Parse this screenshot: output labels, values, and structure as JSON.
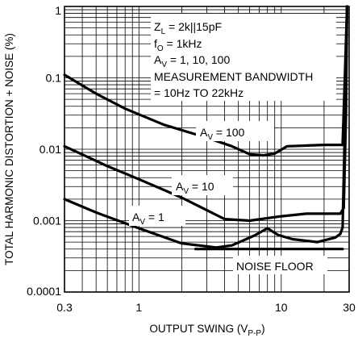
{
  "chart_data": {
    "type": "line",
    "xscale": "log",
    "yscale": "log",
    "xlim": [
      0.3,
      30
    ],
    "ylim": [
      0.0001,
      1
    ],
    "grid": true,
    "xlabel": "OUTPUT SWING (V",
    "xlabel_sub": "P-P",
    "xlabel_close": ")",
    "ylabel": "TOTAL HARMONIC DISTORTION + NOISE (%)",
    "x_ticks": [
      {
        "value": 0.3,
        "label": "0.3"
      },
      {
        "value": 1,
        "label": "1"
      },
      {
        "value": 10,
        "label": "10"
      },
      {
        "value": 30,
        "label": "30"
      }
    ],
    "y_ticks": [
      {
        "value": 1,
        "label": "1"
      },
      {
        "value": 0.1,
        "label": "0.1"
      },
      {
        "value": 0.01,
        "label": "0.01"
      },
      {
        "value": 0.001,
        "label": "0.001"
      },
      {
        "value": 0.0001,
        "label": "0.0001"
      }
    ],
    "conditions": [
      {
        "main": "Z",
        "sub": "L",
        "rest": " = 2k||15pF"
      },
      {
        "main": "f",
        "sub": "O",
        "rest": " = 1kHz"
      },
      {
        "main": "A",
        "sub": "V",
        "rest": " = 1, 10, 100"
      },
      {
        "main": "MEASUREMENT BANDWIDTH",
        "sub": "",
        "rest": ""
      },
      {
        "main": "= 10Hz TO 22kHz",
        "sub": "",
        "rest": ""
      }
    ],
    "series": [
      {
        "name": "AV = 100",
        "label": {
          "main": "A",
          "sub": "V",
          "rest": " = 100"
        },
        "points": [
          [
            0.3,
            0.11
          ],
          [
            0.5,
            0.06
          ],
          [
            0.8,
            0.037
          ],
          [
            1.5,
            0.022
          ],
          [
            3,
            0.0145
          ],
          [
            4.5,
            0.011
          ],
          [
            6,
            0.0085
          ],
          [
            7.5,
            0.0082
          ],
          [
            9,
            0.0087
          ],
          [
            11,
            0.011
          ],
          [
            20,
            0.0115
          ],
          [
            27,
            0.0115
          ],
          [
            28,
            0.1
          ],
          [
            29,
            1
          ]
        ]
      },
      {
        "name": "AV = 10",
        "label": {
          "main": "A",
          "sub": "V",
          "rest": " = 10"
        },
        "points": [
          [
            0.3,
            0.011
          ],
          [
            0.6,
            0.0058
          ],
          [
            1,
            0.0038
          ],
          [
            2,
            0.0021
          ],
          [
            3.5,
            0.0012
          ],
          [
            4,
            0.00105
          ],
          [
            6,
            0.001
          ],
          [
            10,
            0.00115
          ],
          [
            15,
            0.00125
          ],
          [
            26,
            0.00125
          ],
          [
            27.5,
            0.0015
          ],
          [
            28.5,
            0.03
          ],
          [
            29,
            1
          ]
        ]
      },
      {
        "name": "AV = 1",
        "label": {
          "main": "A",
          "sub": "V",
          "rest": " = 1"
        },
        "points": [
          [
            0.3,
            0.002
          ],
          [
            0.5,
            0.0013
          ],
          [
            1,
            0.00078
          ],
          [
            2,
            0.00048
          ],
          [
            3.5,
            0.00042
          ],
          [
            4.5,
            0.00045
          ],
          [
            6.5,
            0.00062
          ],
          [
            8,
            0.00078
          ],
          [
            9.5,
            0.00063
          ],
          [
            12,
            0.00055
          ],
          [
            18,
            0.0005
          ],
          [
            24,
            0.00058
          ],
          [
            26,
            0.00065
          ],
          [
            27,
            0.0008
          ],
          [
            28,
            0.02
          ],
          [
            29,
            1
          ]
        ]
      },
      {
        "name": "NOISE FLOOR",
        "label": {
          "main": "NOISE FLOOR",
          "sub": "",
          "rest": ""
        },
        "points": [
          [
            2.5,
            0.0004
          ],
          [
            27,
            0.0004
          ]
        ]
      }
    ]
  }
}
